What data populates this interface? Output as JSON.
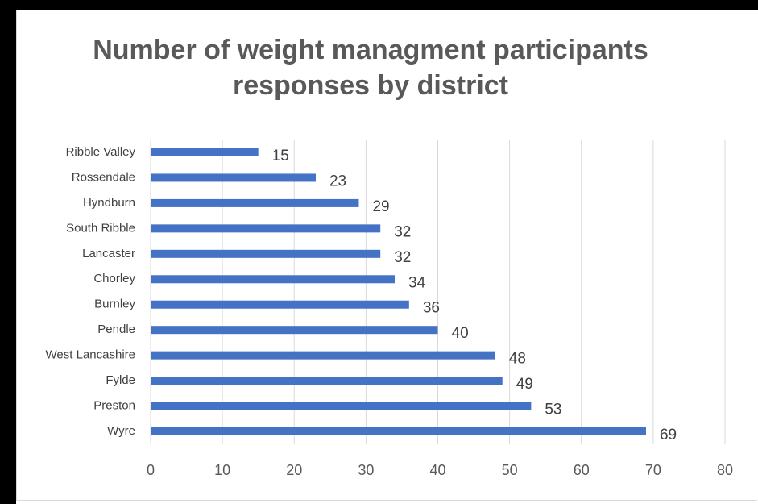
{
  "chart_data": {
    "type": "hbar",
    "title": "Number of weight managment participants responses by district",
    "categories": [
      "Ribble Valley",
      "Rossendale",
      "Hyndburn",
      "South Ribble",
      "Lancaster",
      "Chorley",
      "Burnley",
      "Pendle",
      "West Lancashire",
      "Fylde",
      "Preston",
      "Wyre"
    ],
    "values": [
      15,
      23,
      29,
      32,
      32,
      34,
      36,
      40,
      48,
      49,
      53,
      69
    ],
    "color": "#4472c4",
    "xlim": [
      0,
      80
    ],
    "xticks": [
      0,
      10,
      20,
      30,
      40,
      50,
      60,
      70,
      80
    ],
    "grid": true
  }
}
